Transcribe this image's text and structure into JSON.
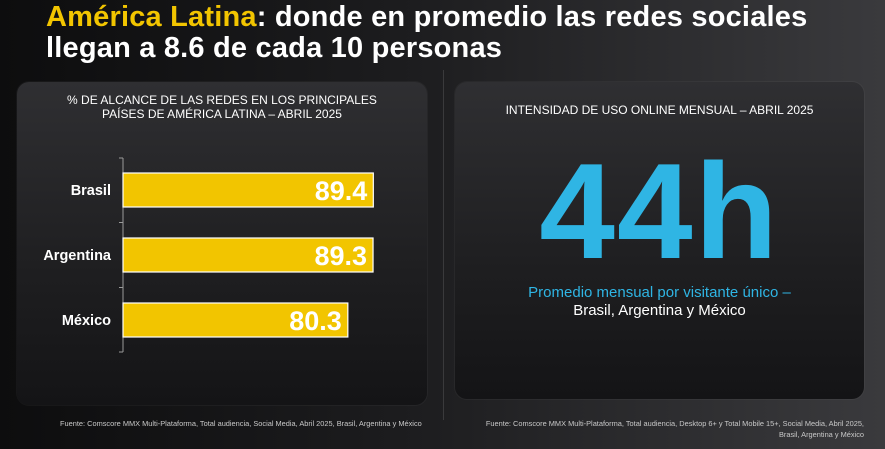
{
  "title": {
    "accent": "América Latina",
    "rest": ": donde en promedio las redes sociales llegan a 8.6 de cada 10 personas"
  },
  "left_panel": {
    "title_line1": "% DE ALCANCE DE LAS REDES EN LOS PRINCIPALES",
    "title_line2": "PAÍSES DE AMÉRICA LATINA – ABRIL 2025",
    "source": "Fuente: Comscore MMX Multi-Plataforma, Total audiencia, Social Media, Abril 2025, Brasil, Argentina y México"
  },
  "right_panel": {
    "title": "INTENSIDAD DE USO ONLINE MENSUAL – ABRIL 2025",
    "big_number": "44h",
    "caption_line1": "Promedio mensual por visitante único –",
    "caption_line2": "Brasil, Argentina y México",
    "source_line1": "Fuente: Comscore MMX Multi-Plataforma, Total audiencia, Desktop 6+ y Total Mobile 15+, Social Media, Abril 2025,",
    "source_line2": "Brasil, Argentina y México"
  },
  "chart_data": {
    "type": "bar",
    "orientation": "horizontal",
    "title": "% DE ALCANCE DE LAS REDES EN LOS PRINCIPALES PAÍSES DE AMÉRICA LATINA – ABRIL 2025",
    "categories": [
      "Brasil",
      "Argentina",
      "México"
    ],
    "values": [
      89.4,
      89.3,
      80.3
    ],
    "value_labels": [
      "89.4",
      "89.3",
      "80.3"
    ],
    "xlim": [
      0,
      100
    ],
    "xlabel": "",
    "ylabel": "",
    "grid": false,
    "bar_color": "#f2c500"
  },
  "colors": {
    "accent_yellow": "#f2c500",
    "accent_blue": "#2fb5e4"
  }
}
